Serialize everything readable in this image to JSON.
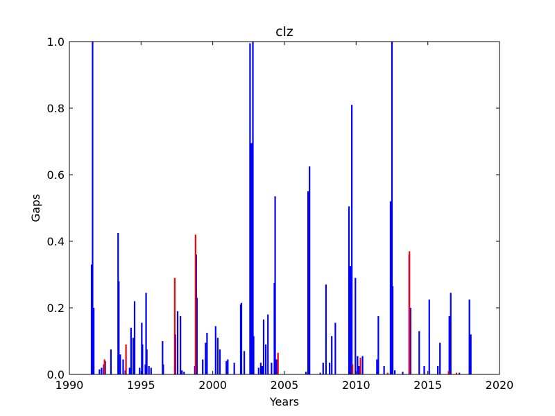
{
  "chart_data": {
    "type": "bar",
    "title": "clz",
    "xlabel": "Years",
    "ylabel": "Gaps",
    "xlim": [
      1990,
      2020
    ],
    "ylim": [
      0,
      1.0
    ],
    "x_ticks": [
      "1990",
      "1995",
      "2000",
      "2005",
      "2010",
      "2015",
      "2020"
    ],
    "y_ticks": [
      "0.0",
      "0.2",
      "0.4",
      "0.6",
      "0.8",
      "1.0"
    ],
    "grid": false,
    "series": [
      {
        "color": "#0000ff",
        "points": [
          [
            1991.55,
            0.33
          ],
          [
            1991.62,
            1.0
          ],
          [
            1991.7,
            0.2
          ],
          [
            1992.1,
            0.015
          ],
          [
            1992.25,
            0.02
          ],
          [
            1992.4,
            0.03
          ],
          [
            1992.5,
            0.04
          ],
          [
            1992.9,
            0.075
          ],
          [
            1993.4,
            0.425
          ],
          [
            1993.45,
            0.28
          ],
          [
            1993.55,
            0.06
          ],
          [
            1993.75,
            0.045
          ],
          [
            1993.9,
            0.012
          ],
          [
            1994.2,
            0.02
          ],
          [
            1994.3,
            0.14
          ],
          [
            1994.45,
            0.11
          ],
          [
            1994.55,
            0.22
          ],
          [
            1994.9,
            0.02
          ],
          [
            1995.05,
            0.155
          ],
          [
            1995.1,
            0.09
          ],
          [
            1995.3,
            0.03
          ],
          [
            1995.35,
            0.245
          ],
          [
            1995.4,
            0.075
          ],
          [
            1995.55,
            0.025
          ],
          [
            1995.7,
            0.02
          ],
          [
            1996.5,
            0.1
          ],
          [
            1996.55,
            0.03
          ],
          [
            1997.4,
            0.12
          ],
          [
            1997.55,
            0.19
          ],
          [
            1997.75,
            0.175
          ],
          [
            1997.85,
            0.012
          ],
          [
            1998.0,
            0.008
          ],
          [
            1998.75,
            0.025
          ],
          [
            1998.85,
            0.36
          ],
          [
            1998.9,
            0.23
          ],
          [
            1999.3,
            0.045
          ],
          [
            1999.5,
            0.095
          ],
          [
            1999.6,
            0.125
          ],
          [
            2000.2,
            0.145
          ],
          [
            2000.35,
            0.11
          ],
          [
            2000.5,
            0.075
          ],
          [
            2000.95,
            0.04
          ],
          [
            2001.05,
            0.045
          ],
          [
            2001.5,
            0.035
          ],
          [
            2001.95,
            0.21
          ],
          [
            2002.0,
            0.215
          ],
          [
            2002.2,
            0.07
          ],
          [
            2002.6,
            0.995
          ],
          [
            2002.7,
            0.695
          ],
          [
            2002.75,
            0.225
          ],
          [
            2002.8,
            1.0
          ],
          [
            2002.85,
            0.115
          ],
          [
            2003.2,
            0.02
          ],
          [
            2003.35,
            0.035
          ],
          [
            2003.45,
            0.025
          ],
          [
            2003.55,
            0.165
          ],
          [
            2003.7,
            0.09
          ],
          [
            2003.85,
            0.18
          ],
          [
            2004.1,
            0.035
          ],
          [
            2004.3,
            0.275
          ],
          [
            2004.35,
            0.535
          ],
          [
            2004.45,
            0.045
          ],
          [
            2006.5,
            0.008
          ],
          [
            2006.65,
            0.55
          ],
          [
            2006.75,
            0.625
          ],
          [
            2007.5,
            0.005
          ],
          [
            2007.7,
            0.035
          ],
          [
            2007.9,
            0.27
          ],
          [
            2008.15,
            0.035
          ],
          [
            2008.3,
            0.115
          ],
          [
            2008.55,
            0.155
          ],
          [
            2009.5,
            0.505
          ],
          [
            2009.55,
            0.08
          ],
          [
            2009.6,
            0.325
          ],
          [
            2009.7,
            0.81
          ],
          [
            2009.95,
            0.29
          ],
          [
            2010.1,
            0.055
          ],
          [
            2010.2,
            0.025
          ],
          [
            2010.45,
            0.055
          ],
          [
            2011.45,
            0.045
          ],
          [
            2011.55,
            0.175
          ],
          [
            2011.95,
            0.025
          ],
          [
            2012.4,
            0.52
          ],
          [
            2012.5,
            1.0
          ],
          [
            2012.55,
            0.265
          ],
          [
            2012.7,
            0.012
          ],
          [
            2013.25,
            0.008
          ],
          [
            2013.7,
            0.36
          ],
          [
            2013.8,
            0.2
          ],
          [
            2014.4,
            0.13
          ],
          [
            2014.75,
            0.025
          ],
          [
            2015.1,
            0.225
          ],
          [
            2015.7,
            0.025
          ],
          [
            2015.85,
            0.095
          ],
          [
            2016.5,
            0.175
          ],
          [
            2016.6,
            0.245
          ],
          [
            2017.2,
            0.005
          ],
          [
            2017.9,
            0.225
          ],
          [
            2018.0,
            0.12
          ]
        ]
      },
      {
        "color": "#ff0000",
        "points": [
          [
            1992.45,
            0.045
          ],
          [
            1993.95,
            0.09
          ],
          [
            1997.35,
            0.29
          ],
          [
            1998.8,
            0.42
          ],
          [
            2004.55,
            0.065
          ],
          [
            2009.75,
            0.03
          ],
          [
            2010.3,
            0.05
          ],
          [
            2012.2,
            0.005
          ],
          [
            2013.72,
            0.37
          ],
          [
            2016.45,
            0.01
          ],
          [
            2017.0,
            0.005
          ]
        ]
      }
    ]
  }
}
